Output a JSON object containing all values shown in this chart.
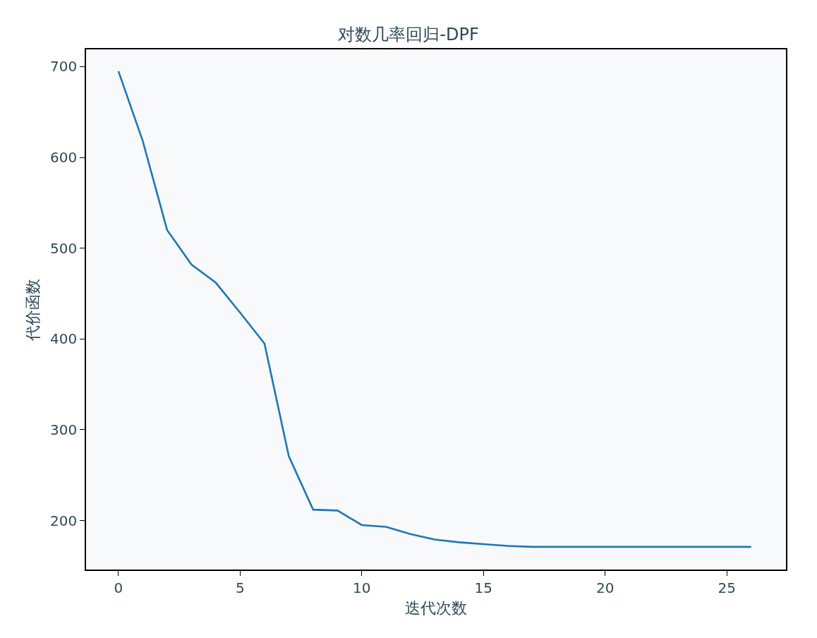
{
  "chart_data": {
    "type": "line",
    "title": "对数几率回归-DPF",
    "xlabel": "迭代次数",
    "ylabel": "代价函数",
    "x": [
      0,
      1,
      2,
      3,
      4,
      5,
      6,
      7,
      8,
      9,
      10,
      11,
      12,
      13,
      14,
      15,
      16,
      17,
      18,
      19,
      20,
      21,
      22,
      23,
      24,
      25,
      26
    ],
    "series": [
      {
        "color": "#1f77b4",
        "values": [
          695,
          618,
          520,
          482,
          462,
          429,
          395,
          271,
          212,
          211,
          195,
          193,
          185,
          179,
          176,
          174,
          172,
          171,
          171,
          171,
          171,
          171,
          171,
          171,
          171,
          171,
          171
        ]
      }
    ],
    "xlim": [
      -1.33,
      27.43
    ],
    "xticks": [
      0,
      5,
      10,
      15,
      20,
      25
    ],
    "ylim": [
      146,
      719
    ],
    "yticks": [
      200,
      300,
      400,
      500,
      600,
      700
    ],
    "grid": false,
    "legend": false,
    "marker": "none",
    "line_style": "solid"
  }
}
